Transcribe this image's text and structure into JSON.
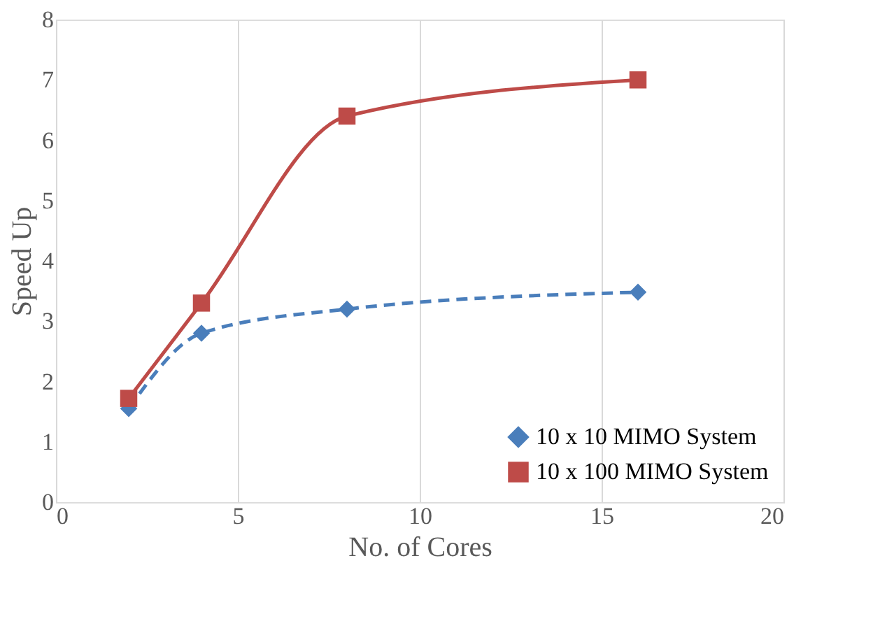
{
  "chart_data": {
    "type": "line",
    "xlabel": "No. of Cores",
    "ylabel": "Speed Up",
    "x": [
      2,
      4,
      8,
      16
    ],
    "series": [
      {
        "name": "10 x 10 MIMO System",
        "color": "#4a7ebb",
        "values": [
          1.55,
          2.8,
          3.2,
          3.48
        ],
        "marker": "diamond",
        "line_style": "dashed"
      },
      {
        "name": "10 x 100 MIMO System",
        "color": "#be4b48",
        "values": [
          1.72,
          3.3,
          6.4,
          7.0
        ],
        "marker": "square",
        "line_style": "solid"
      }
    ],
    "xlim": [
      0,
      20
    ],
    "xticks": [
      0,
      5,
      10,
      15,
      20
    ],
    "ylim": [
      0,
      8
    ],
    "yticks": [
      0,
      1,
      2,
      3,
      4,
      5,
      6,
      7,
      8
    ],
    "grid": "x",
    "legend": "bottom right"
  }
}
